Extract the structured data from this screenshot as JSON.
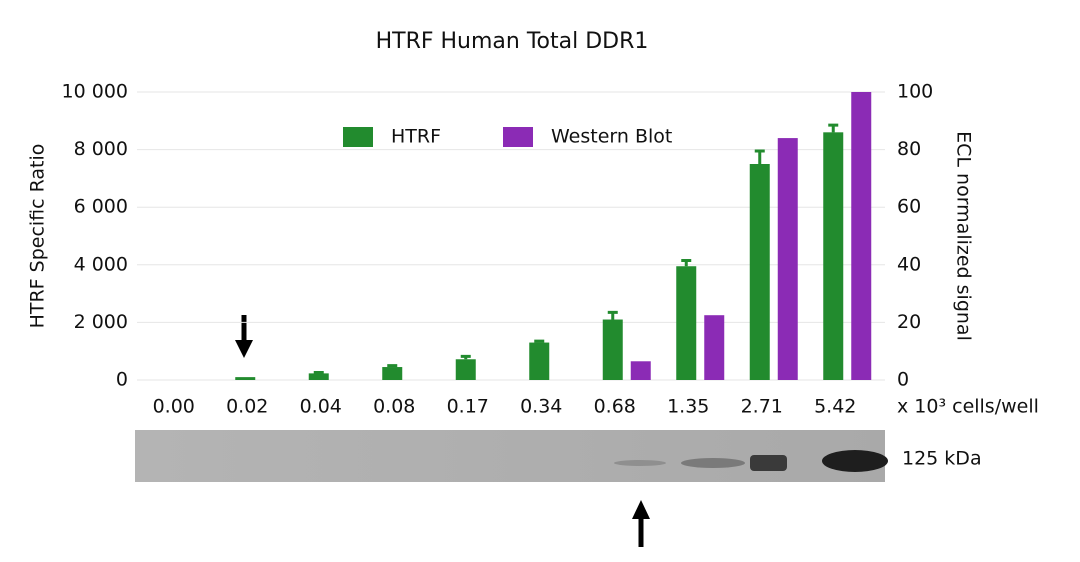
{
  "chart_data": {
    "type": "bar",
    "title": "HTRF Human Total DDR1",
    "y_label": "HTRF Specific Ratio",
    "y2_label": "ECL normalized signal",
    "x_label": "x 10³ cells/well",
    "blot_label": "125 kDa",
    "categories": [
      "0.00",
      "0.02",
      "0.04",
      "0.08",
      "0.17",
      "0.34",
      "0.68",
      "1.35",
      "2.71",
      "5.42"
    ],
    "series": [
      {
        "name": "HTRF",
        "color": "#228b2e",
        "values": [
          0,
          100,
          230,
          450,
          720,
          1300,
          2100,
          3950,
          7500,
          8600
        ],
        "errors": [
          0,
          0,
          30,
          50,
          100,
          50,
          250,
          200,
          450,
          250
        ]
      },
      {
        "name": "Western Blot",
        "color": "#8b2bb5",
        "axis": "y2",
        "values": [
          0,
          0,
          0,
          0,
          0,
          0,
          6.5,
          22.5,
          84,
          100
        ]
      }
    ],
    "ylim": [
      0,
      10000
    ],
    "yticks": [
      0,
      {
        "value": 2000,
        "label": "2 000"
      },
      {
        "value": 4000,
        "label": "4 000"
      },
      {
        "value": 6000,
        "label": "6 000"
      },
      {
        "value": 8000,
        "label": "8 000"
      },
      {
        "value": 10000,
        "label": "10 000"
      }
    ],
    "y2lim": [
      0,
      100
    ],
    "y2ticks": [
      0,
      20,
      40,
      60,
      80,
      100
    ],
    "grid": true
  }
}
